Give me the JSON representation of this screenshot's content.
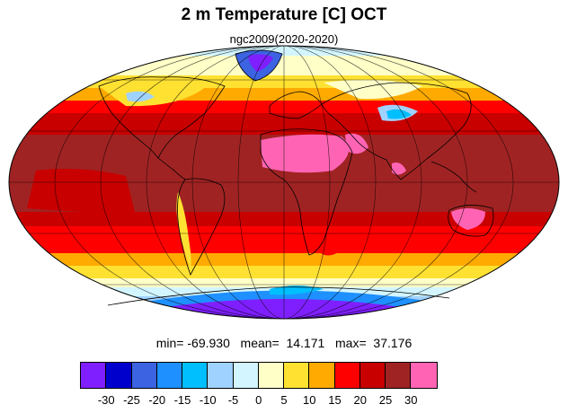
{
  "header": {
    "title": "2 m Temperature [C] OCT",
    "subtitle": "ngc2009(2020-2020)"
  },
  "stats": {
    "min_label": "min=",
    "min_value": "-69.930",
    "mean_label": "mean=",
    "mean_value": "14.171",
    "max_label": "max=",
    "max_value": "37.176"
  },
  "colorbar": {
    "colors": [
      "#7f1fff",
      "#0000cd",
      "#3c63e1",
      "#1e90ff",
      "#00bfff",
      "#a0d2ff",
      "#d2f5ff",
      "#ffffc8",
      "#ffe132",
      "#ffaa00",
      "#ff0000",
      "#c80000",
      "#a02323",
      "#ff64b4"
    ],
    "labels": [
      "-30",
      "-25",
      "-20",
      "-15",
      "-10",
      "-5",
      "0",
      "5",
      "10",
      "15",
      "20",
      "25",
      "30"
    ]
  },
  "map": {
    "colors": {
      "pink": "#ff64b4",
      "dark_red": "#a02323",
      "red_mid": "#c80000",
      "red": "#ff0000",
      "orange": "#ffaa00",
      "yellow": "#ffe132",
      "pale_yellow": "#ffffc8",
      "pale_cyan": "#d2f5ff",
      "light_blue": "#a0d2ff",
      "cyan": "#00bfff",
      "dodger": "#1e90ff",
      "royal": "#3c63e1",
      "purple": "#7f1fff"
    }
  }
}
